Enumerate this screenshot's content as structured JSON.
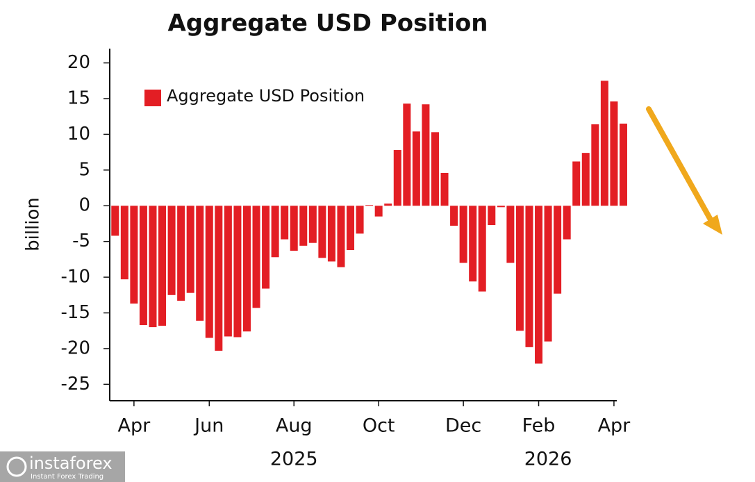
{
  "chart_data": {
    "type": "bar",
    "title": "Aggregate USD Position",
    "y_label": "billion",
    "legend": "top-left",
    "series": [
      {
        "name": "Aggregate USD Position",
        "color": "#e31e24",
        "values": [
          -4.2,
          -10.3,
          -13.7,
          -16.7,
          -17,
          -16.8,
          -12.5,
          -13.3,
          -12.2,
          -16.1,
          -18.5,
          -20.3,
          -18.3,
          -18.4,
          -17.6,
          -14.3,
          -11.6,
          -7.2,
          -4.7,
          -6.3,
          -5.6,
          -5.2,
          -7.3,
          -7.8,
          -8.6,
          -6.2,
          -3.9,
          0.1,
          -1.5,
          0.3,
          7.8,
          14.3,
          10.4,
          14.2,
          10.3,
          4.6,
          -2.8,
          -8,
          -10.6,
          -12,
          -2.7,
          -0.2,
          -8,
          -17.5,
          -19.8,
          -22.1,
          -19,
          -12.3,
          -4.7,
          6.2,
          7.4,
          11.4,
          17.5,
          14.6,
          11.5
        ]
      }
    ],
    "categories": [
      null,
      null,
      "Apr",
      null,
      null,
      null,
      null,
      null,
      null,
      null,
      "Jun",
      null,
      null,
      null,
      null,
      null,
      null,
      null,
      null,
      "Aug",
      null,
      null,
      null,
      null,
      null,
      null,
      null,
      null,
      "Oct",
      null,
      null,
      null,
      null,
      null,
      null,
      null,
      null,
      "Dec",
      null,
      null,
      null,
      null,
      null,
      null,
      null,
      "Feb",
      null,
      null,
      null,
      null,
      null,
      null,
      null,
      "Apr",
      null
    ],
    "year_labels": [
      null,
      null,
      null,
      null,
      null,
      null,
      null,
      null,
      null,
      null,
      null,
      null,
      null,
      null,
      null,
      null,
      null,
      null,
      null,
      "2025",
      null,
      null,
      null,
      null,
      null,
      null,
      null,
      null,
      null,
      null,
      null,
      null,
      null,
      null,
      null,
      null,
      null,
      null,
      null,
      null,
      null,
      null,
      null,
      null,
      null,
      null,
      "2026",
      null,
      null,
      null,
      null,
      null,
      null,
      null,
      null
    ],
    "ylim": [
      -27.3,
      22
    ],
    "yticks": [
      20,
      15,
      10,
      5,
      0,
      -5,
      -10,
      -15,
      -20,
      -25
    ]
  },
  "watermark": {
    "brand": "instaforex",
    "tagline": "Instant Forex Trading"
  }
}
